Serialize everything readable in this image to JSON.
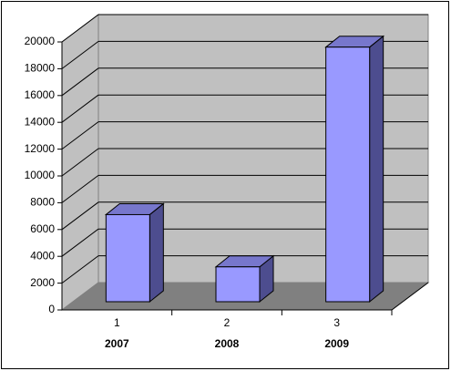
{
  "chart_data": {
    "type": "bar3d",
    "categories": [
      "1",
      "2",
      "3"
    ],
    "subcategories": [
      "2007",
      "2008",
      "2009"
    ],
    "values": [
      6500,
      2600,
      19000
    ],
    "color": "#9999ff",
    "ylim": [
      0,
      20000
    ],
    "yticks": [
      0,
      2000,
      4000,
      6000,
      8000,
      10000,
      12000,
      14000,
      16000,
      18000,
      20000
    ],
    "grid": true
  }
}
